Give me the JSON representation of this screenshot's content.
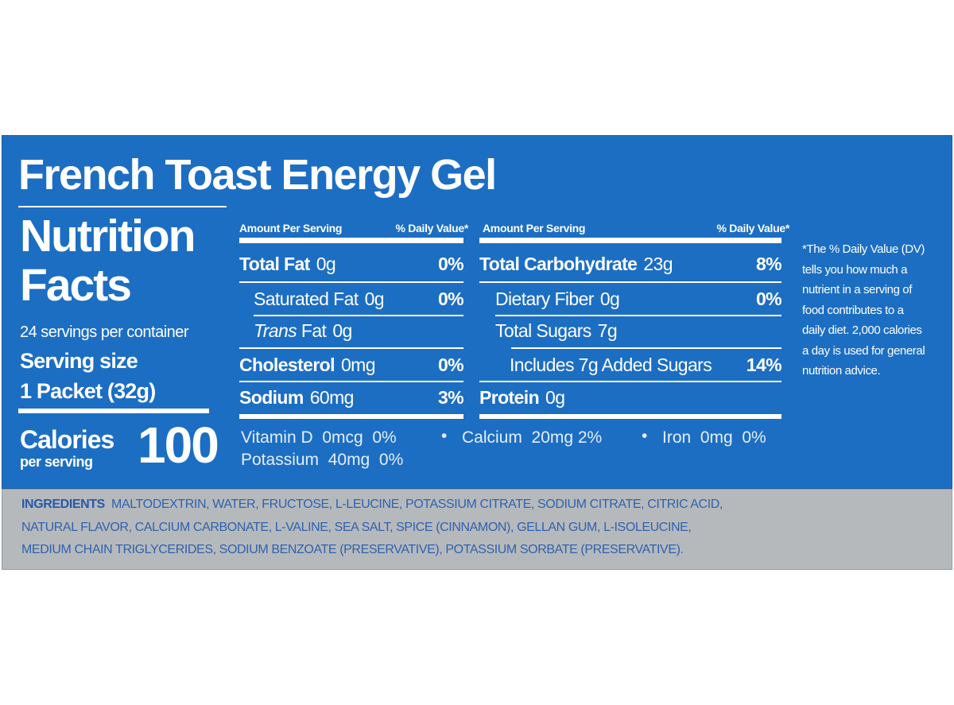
{
  "title": "French Toast Energy Gel",
  "heading": [
    "Nutrition",
    "Facts"
  ],
  "servings": "24 servings per container",
  "serving_size_label": "Serving size",
  "serving_size": "1 Packet (32g)",
  "calories": {
    "label": "Calories",
    "sub": "per serving",
    "value": "100"
  },
  "left_table": {
    "header": [
      "Amount Per Serving",
      "% Daily Value*"
    ],
    "rows": [
      {
        "name": "Total Fat",
        "amount": "0g",
        "dv": "0%"
      },
      {
        "name": "Saturated Fat",
        "amount": "0g",
        "dv": "0%"
      },
      {
        "name_italic": "Trans",
        "name": "Fat",
        "amount": "0g"
      },
      {
        "name": "Cholesterol",
        "amount": "0mg",
        "dv": "0%"
      },
      {
        "name": "Sodium",
        "amount": "60mg",
        "dv": "3%"
      }
    ]
  },
  "right_table": {
    "header": [
      "Amount Per Serving",
      "% Daily Value*"
    ],
    "rows": [
      {
        "name": "Total Carbohydrate",
        "amount": "23g",
        "dv": "8%"
      },
      {
        "name": "Dietary Fiber",
        "amount": "0g",
        "dv": "0%"
      },
      {
        "name": "Total Sugars",
        "amount": "7g"
      },
      {
        "name": "Includes 7g Added Sugars",
        "dv": "14%"
      },
      {
        "name": "Protein",
        "amount": "0g"
      }
    ]
  },
  "micronutrients": [
    "Vitamin D  0mcg  0%",
    "Calcium  20mg 2%",
    "Iron  0mg  0%",
    "Potassium  40mg  0%"
  ],
  "footnote": "*The % Daily Value (DV) tells you how much a nutrient in a serving of food contributes to a daily diet. 2,000 calories a day is used for general nutrition advice.",
  "ingredients": {
    "label": "INGREDIENTS",
    "lines": [
      "MALTODEXTRIN, WATER, FRUCTOSE, L-LEUCINE, POTASSIUM CITRATE, SODIUM CITRATE, CITRIC ACID,",
      "NATURAL FLAVOR, CALCIUM CARBONATE, L-VALINE, SEA SALT, SPICE (CINNAMON), GELLAN GUM, L-ISOLEUCINE,",
      "MEDIUM CHAIN TRIGLYCERIDES, SODIUM BENZOATE (PRESERVATIVE), POTASSIUM SORBATE (PRESERVATIVE)."
    ]
  }
}
